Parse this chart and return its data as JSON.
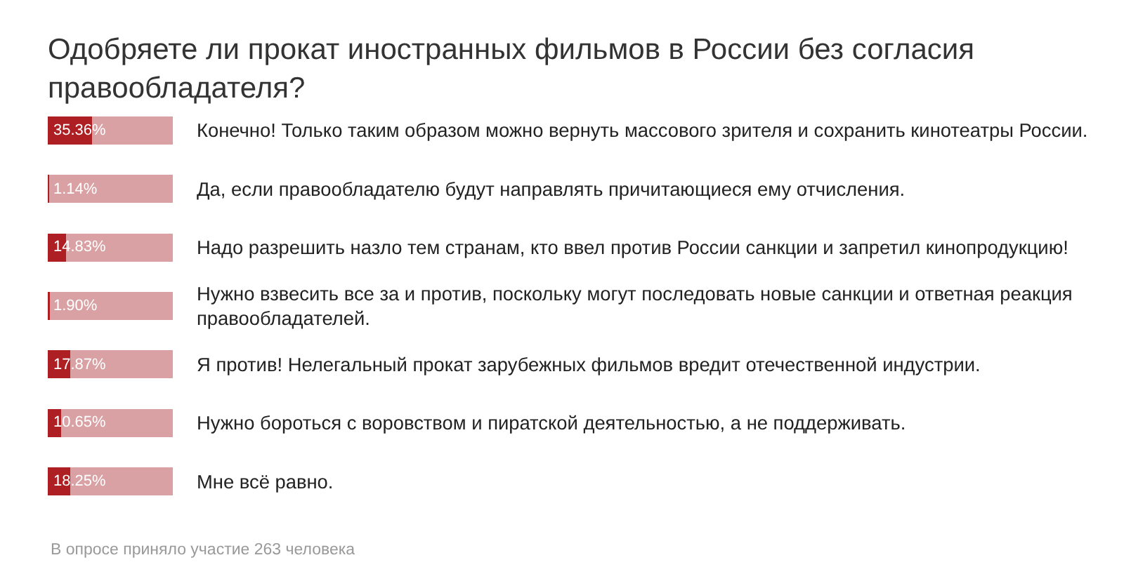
{
  "chart_data": {
    "type": "bar",
    "orientation": "horizontal",
    "stacked": true,
    "title": "Одобряете ли прокат иностранных фильмов в России без согласия правообладателя?",
    "categories": [
      "Конечно! Только таким образом можно вернуть массового зрителя и сохранить кинотеатры России.",
      "Да, если правообладателю будут направлять причитающиеся ему отчисления.",
      "Надо разрешить назло тем странам, кто ввел против России санкции и запретил кинопродукцию!",
      "Нужно взвесить все за и против, поскольку могут последовать новые санкции и ответная реакция правообладателей.",
      "Я против! Нелегальный прокат зарубежных фильмов вредит отечественной индустрии.",
      "Нужно бороться с воровством и пиратской деятельностью, а не поддерживать.",
      "Мне всё равно."
    ],
    "series": [
      {
        "color": "#ad1f22",
        "values": [
          35.36,
          1.14,
          14.83,
          1.9,
          17.87,
          10.65,
          18.25
        ],
        "value_labels": [
          "35.36%",
          "1.14%",
          "14.83%",
          "1.90%",
          "17.87%",
          "10.65%",
          "18.25%"
        ]
      },
      {
        "color": "#d9a1a3",
        "values": [
          64.64,
          98.86,
          85.17,
          98.1,
          82.13,
          89.35,
          81.75
        ]
      }
    ],
    "xlim": [
      0,
      100
    ],
    "tick_labels": "y",
    "annotations": [
      "В опросе приняло участие 263 человека"
    ]
  }
}
